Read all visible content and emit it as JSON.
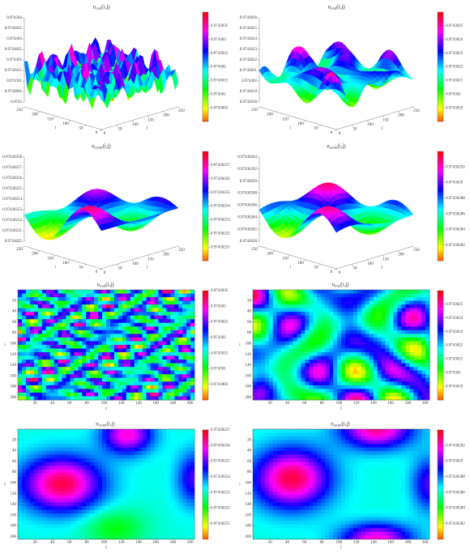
{
  "chart_data": [
    {
      "type": "surface3d",
      "title": "u₁₀₀(i,j)",
      "xlabel": "j",
      "ylabel": "i",
      "xlim": [
        0,
        250
      ],
      "ylim": [
        0,
        250
      ],
      "xticks": [
        0,
        50,
        100,
        150,
        200,
        250
      ],
      "yticks": [
        0,
        50,
        100,
        150,
        200,
        250
      ],
      "zlim": [
        0.9743,
        0.974304
      ],
      "zticks": [
        0.9743,
        0.9743005,
        0.974301,
        0.9743015,
        0.974302,
        0.9743025,
        0.974303,
        0.9743035,
        0.974304
      ],
      "clim": [
        0.9743,
        0.974304
      ],
      "cticks": [
        0.9743005,
        0.974301,
        0.9743015,
        0.974302,
        0.9743025,
        0.974303,
        0.9743035
      ]
    },
    {
      "type": "surface3d",
      "title": "u₅₀₀(i,j)",
      "xlabel": "j",
      "ylabel": "i",
      "xlim": [
        0,
        250
      ],
      "ylim": [
        0,
        250
      ],
      "xticks": [
        0,
        50,
        100,
        150,
        200,
        250
      ],
      "yticks": [
        0,
        50,
        100,
        150,
        200,
        250
      ],
      "zlim": [
        0.9743018,
        0.9743026
      ],
      "zticks": [
        0.9743018,
        0.9743019,
        0.974302,
        0.9743021,
        0.9743022,
        0.9743023,
        0.9743024,
        0.9743025,
        0.9743026
      ],
      "clim": [
        0.9743018,
        0.9743026
      ],
      "cticks": [
        0.9743019,
        0.974302,
        0.9743021,
        0.9743022,
        0.9743023,
        0.9743024,
        0.9743025
      ]
    },
    {
      "type": "surface3d",
      "title": "u₁₀₀₀(i,j)",
      "xlabel": "j",
      "ylabel": "i",
      "xlim": [
        0,
        250
      ],
      "ylim": [
        0,
        250
      ],
      "xticks": [
        0,
        50,
        100,
        150,
        200,
        250
      ],
      "yticks": [
        0,
        50,
        100,
        150,
        200,
        250
      ],
      "zlim": [
        0.9743025,
        0.97430258
      ],
      "zticks": [
        0.9743025,
        0.97430251,
        0.97430252,
        0.97430253,
        0.97430254,
        0.97430255,
        0.97430256,
        0.97430257,
        0.97430258
      ],
      "clim": [
        0.9743025,
        0.97430258
      ],
      "cticks": [
        0.97430251,
        0.97430252,
        0.97430253,
        0.97430254,
        0.97430255,
        0.97430256,
        0.97430257
      ]
    },
    {
      "type": "surface3d",
      "title": "u₂₀₀₀(i,j)",
      "xlabel": "j",
      "ylabel": "i",
      "xlim": [
        0,
        250
      ],
      "ylim": [
        0,
        250
      ],
      "xticks": [
        0,
        50,
        100,
        150,
        200,
        250
      ],
      "yticks": [
        0,
        50,
        100,
        150,
        200,
        250
      ],
      "zlim": [
        0.9743028,
        0.97430294
      ],
      "zticks": [
        0.9743028,
        0.97430282,
        0.97430284,
        0.97430286,
        0.97430288,
        0.9743029,
        0.97430292,
        0.97430294
      ],
      "clim": [
        0.9743028,
        0.97430294
      ],
      "cticks": [
        0.97430282,
        0.97430284,
        0.97430286,
        0.97430288,
        0.9743029,
        0.97430292
      ]
    },
    {
      "type": "heatmap",
      "title": "u₁₀₀(i,j)",
      "xlabel": "j",
      "ylabel": "i",
      "y_reversed": true,
      "xlim": [
        0,
        205
      ],
      "ylim": [
        0,
        205
      ],
      "xticks": [
        20,
        40,
        60,
        80,
        100,
        120,
        140,
        160,
        180,
        200
      ],
      "yticks": [
        20,
        40,
        60,
        80,
        100,
        120,
        140,
        160,
        180,
        200
      ],
      "clim": [
        0.9743,
        0.9743035
      ],
      "cticks": [
        0.9743005,
        0.974301,
        0.9743015,
        0.974302,
        0.9743025,
        0.974303,
        0.9743035
      ]
    },
    {
      "type": "heatmap",
      "title": "u₅₀₀(i,j)",
      "xlabel": "j",
      "ylabel": "i",
      "y_reversed": true,
      "xlim": [
        0,
        205
      ],
      "ylim": [
        0,
        205
      ],
      "xticks": [
        20,
        40,
        60,
        80,
        100,
        120,
        140,
        160,
        180,
        200
      ],
      "yticks": [
        20,
        40,
        60,
        80,
        100,
        120,
        140,
        160,
        180,
        200
      ],
      "clim": [
        0.9743018,
        0.9743026
      ],
      "cticks": [
        0.9743019,
        0.974302,
        0.9743021,
        0.9743022,
        0.9743023,
        0.9743024,
        0.9743025
      ]
    },
    {
      "type": "heatmap",
      "title": "u₁₀₀₀(i,j)",
      "xlabel": "j",
      "ylabel": "i",
      "y_reversed": true,
      "xlim": [
        0,
        205
      ],
      "ylim": [
        0,
        205
      ],
      "xticks": [
        20,
        40,
        60,
        80,
        100,
        120,
        140,
        160,
        180,
        200
      ],
      "yticks": [
        20,
        40,
        60,
        80,
        100,
        120,
        140,
        160,
        180,
        200
      ],
      "clim": [
        0.9743025,
        0.97430257
      ],
      "cticks": [
        0.97430251,
        0.97430252,
        0.97430253,
        0.97430254,
        0.97430255,
        0.97430256,
        0.97430257
      ]
    },
    {
      "type": "heatmap",
      "title": "u₂₀₀₀(i,j)",
      "xlabel": "j",
      "ylabel": "i",
      "y_reversed": true,
      "xlim": [
        0,
        205
      ],
      "ylim": [
        0,
        205
      ],
      "xticks": [
        20,
        40,
        60,
        80,
        100,
        120,
        140,
        160,
        180,
        200
      ],
      "yticks": [
        20,
        40,
        60,
        80,
        100,
        120,
        140,
        160,
        180,
        200
      ],
      "clim": [
        0.9743028,
        0.97430294
      ],
      "cticks": [
        0.97430282,
        0.97430284,
        0.97430286,
        0.97430288,
        0.9743029,
        0.97430292
      ]
    }
  ]
}
